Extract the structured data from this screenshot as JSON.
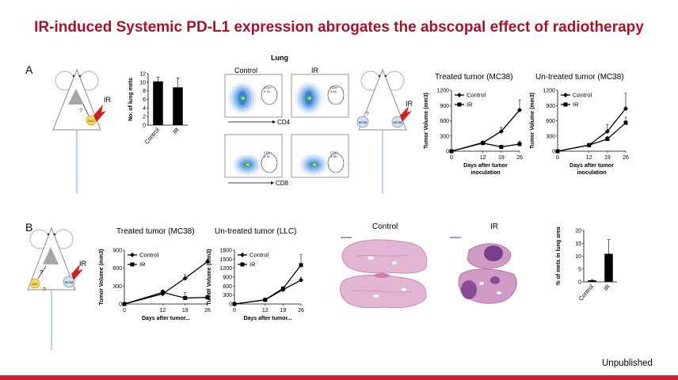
{
  "slide_title": "IR-induced Systemic PD-L1 expression abrogates the abscopal effect of radiotherapy",
  "footer_note": "Unpublished",
  "colors": {
    "title": "#a3142a",
    "bottom_bar": "#c0262e"
  },
  "panel_a": {
    "label": "A",
    "mouse1": {
      "ir_label": "IR",
      "tumor_label": "LLC",
      "question_mark": "?"
    },
    "mouse2": {
      "ir_label": "IR",
      "left_tumor_label": "MC38",
      "right_tumor_label": "MC38",
      "question_mark": "?"
    },
    "flow": {
      "title": "Lung",
      "col_control": "Control",
      "col_ir": "IR",
      "row1_axis": "CD4",
      "row2_axis": "CD8",
      "gates": [
        {
          "label": "CD4+",
          "value": "2.75"
        },
        {
          "label": "CD4+",
          "value": "3.44"
        },
        {
          "label": "CD8+",
          "value": "2.31"
        },
        {
          "label": "CD8+",
          "value": "1.55"
        }
      ]
    }
  },
  "panel_b": {
    "label": "B",
    "mouse": {
      "ir_label": "IR",
      "left_tumor_label": "LLC",
      "right_tumor_label": "MC38",
      "question_mark": "?"
    },
    "histology": {
      "control_label": "Control",
      "ir_label": "IR"
    }
  },
  "chart_data": [
    {
      "id": "a_lung_mets",
      "type": "bar",
      "title": "",
      "categories": [
        "Control",
        "IR"
      ],
      "values": [
        10.2,
        8.8
      ],
      "errors": [
        1.0,
        2.2
      ],
      "ylabel": "No. of lung mets",
      "xlabel": "",
      "ylim": [
        0,
        12
      ],
      "yticks": [
        0,
        2,
        4,
        6,
        8,
        10,
        12
      ]
    },
    {
      "id": "a_treated",
      "type": "line",
      "title": "Treated tumor (MC38)",
      "x": [
        0,
        12,
        19,
        26
      ],
      "xticks": [
        0,
        12,
        19,
        26
      ],
      "xlabel": "Days after tumor inoculation",
      "ylabel": "Tumor Volume (mm3)",
      "ylim": [
        0,
        1200
      ],
      "yticks": [
        0,
        300,
        600,
        900,
        1200
      ],
      "legend_position": "top-left",
      "series": [
        {
          "name": "Control",
          "marker": "diamond",
          "values": [
            0,
            170,
            390,
            810
          ],
          "errors": [
            0,
            20,
            80,
            200
          ]
        },
        {
          "name": "IR",
          "marker": "square",
          "values": [
            0,
            160,
            85,
            140
          ],
          "errors": [
            0,
            20,
            25,
            60
          ]
        }
      ]
    },
    {
      "id": "a_untreated",
      "type": "line",
      "title": "Un-treated tumor (MC38)",
      "x": [
        0,
        12,
        19,
        26
      ],
      "xticks": [
        0,
        12,
        19,
        26
      ],
      "xlabel": "Days after tumor inoculation",
      "ylabel": "Tumor Volume (mm3)",
      "ylim": [
        0,
        1200
      ],
      "yticks": [
        0,
        300,
        600,
        900,
        1200
      ],
      "legend_position": "top-left",
      "series": [
        {
          "name": "Control",
          "marker": "diamond",
          "values": [
            0,
            120,
            390,
            840
          ],
          "errors": [
            0,
            15,
            130,
            300
          ]
        },
        {
          "name": "IR",
          "marker": "square",
          "values": [
            0,
            120,
            240,
            560
          ],
          "errors": [
            0,
            15,
            50,
            110
          ]
        }
      ]
    },
    {
      "id": "b_treated",
      "type": "line",
      "title": "Treated tumor (MC38)",
      "x": [
        0,
        12,
        19,
        26
      ],
      "xticks": [
        0,
        12,
        19,
        26
      ],
      "xlabel": "Days after tumor...",
      "ylabel": "Tumor Volume (mm3)",
      "ylim": [
        0,
        900
      ],
      "yticks": [
        0,
        300,
        600,
        900
      ],
      "legend_position": "top-left",
      "series": [
        {
          "name": "Control",
          "marker": "diamond",
          "values": [
            0,
            170,
            430,
            710
          ],
          "errors": [
            0,
            30,
            60,
            40
          ]
        },
        {
          "name": "IR",
          "marker": "square",
          "values": [
            0,
            195,
            100,
            110
          ],
          "errors": [
            0,
            40,
            90,
            130
          ]
        }
      ]
    },
    {
      "id": "b_untreated",
      "type": "line",
      "title": "Un-treated tumor (LLC)",
      "x": [
        0,
        12,
        19,
        26
      ],
      "xticks": [
        0,
        12,
        19,
        26
      ],
      "xlabel": "Days after tumor...",
      "ylabel": "Tumor Volume (mm3)",
      "ylim": [
        0,
        1800
      ],
      "yticks": [
        0,
        300,
        600,
        900,
        1200,
        1500,
        1800
      ],
      "legend_position": "top-left",
      "series": [
        {
          "name": "Control",
          "marker": "diamond",
          "values": [
            0,
            140,
            480,
            800
          ],
          "errors": [
            0,
            20,
            50,
            100
          ]
        },
        {
          "name": "IR",
          "marker": "square",
          "values": [
            0,
            140,
            520,
            1300
          ],
          "errors": [
            0,
            20,
            50,
            350
          ]
        }
      ]
    },
    {
      "id": "b_mets_area",
      "type": "bar",
      "title": "",
      "categories": [
        "Control",
        "IR"
      ],
      "values": [
        0.6,
        10.9
      ],
      "errors": [
        0.3,
        5.5
      ],
      "ylabel": "% of mets in lung area",
      "xlabel": "",
      "ylim": [
        0,
        20
      ],
      "yticks": [
        0,
        5,
        10,
        15,
        20
      ]
    }
  ]
}
